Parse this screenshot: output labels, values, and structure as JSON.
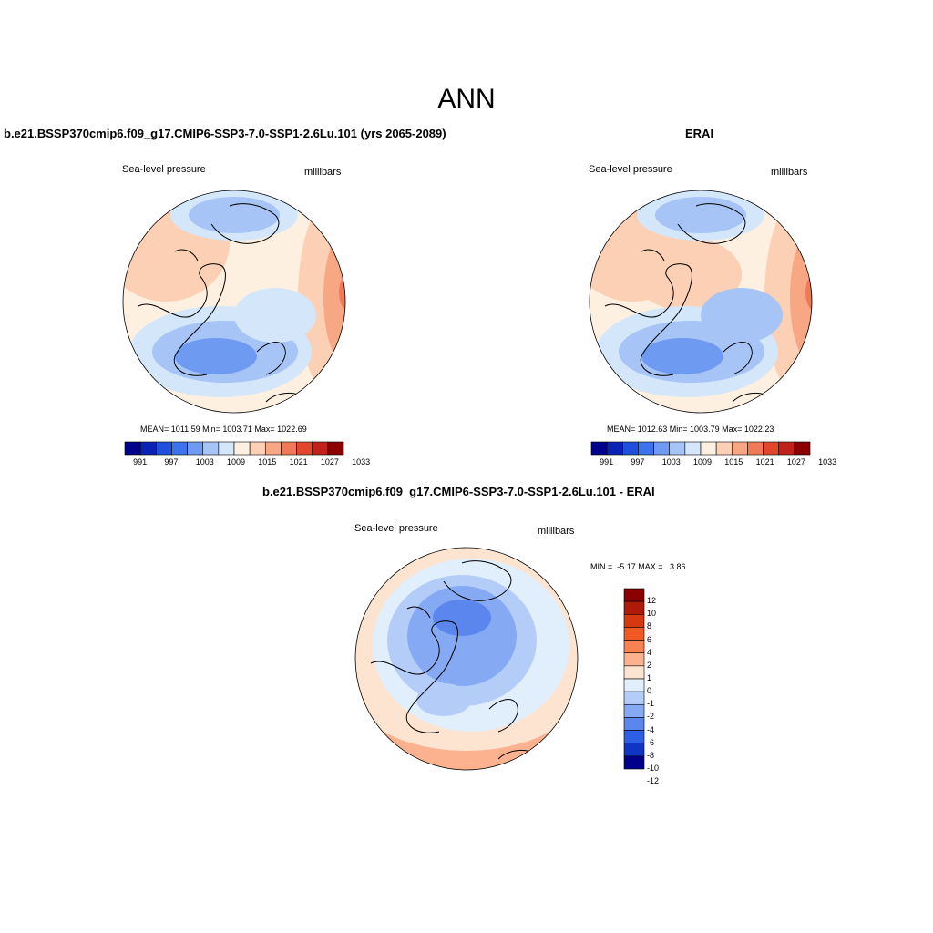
{
  "main_title": "ANN",
  "colors": {
    "scale_13": [
      "#00008b",
      "#0a22b4",
      "#1f4fdc",
      "#3b73ec",
      "#6e9af2",
      "#a6c4f6",
      "#d4e6fa",
      "#fdf0e0",
      "#fcd0b4",
      "#f8a784",
      "#f07a57",
      "#e0472b",
      "#c0211a",
      "#8b0000"
    ],
    "diff_scale": [
      "#8b0000",
      "#b01a0a",
      "#d8380f",
      "#f05a22",
      "#f88254",
      "#fcb28e",
      "#fde4d0",
      "#e1eefc",
      "#b4cdf8",
      "#86a9f4",
      "#5a86ee",
      "#2f5fe4",
      "#1034c4",
      "#00008b"
    ]
  },
  "panels": {
    "model": {
      "title": "b.e21.BSSP370cmip6.f09_g17.CMIP6-SSP3-7.0-SSP1-2.6Lu.101 (yrs 2065-2089)",
      "variable": "Sea-level pressure",
      "units": "millibars",
      "stats": "MEAN= 1011.59  Min= 1003.71  Max= 1022.69",
      "colorbar_labels": [
        "991",
        "997",
        "1003",
        "1009",
        "1015",
        "1021",
        "1027",
        "1033"
      ]
    },
    "obs": {
      "title": "ERAI",
      "variable": "Sea-level pressure",
      "units": "millibars",
      "stats": "MEAN= 1012.63  Min= 1003.79  Max= 1022.23",
      "colorbar_labels": [
        "991",
        "997",
        "1003",
        "1009",
        "1015",
        "1021",
        "1027",
        "1033"
      ]
    },
    "diff": {
      "title": "b.e21.BSSP370cmip6.f09_g17.CMIP6-SSP3-7.0-SSP1-2.6Lu.101 - ERAI",
      "variable": "Sea-level pressure",
      "units": "millibars",
      "minmax": "MIN =  -5.17 MAX =   3.86",
      "colorbar_labels": [
        "12",
        "10",
        "8",
        "6",
        "4",
        "2",
        "1",
        "0",
        "-1",
        "-2",
        "-4",
        "-6",
        "-8",
        "-10",
        "-12"
      ]
    }
  }
}
